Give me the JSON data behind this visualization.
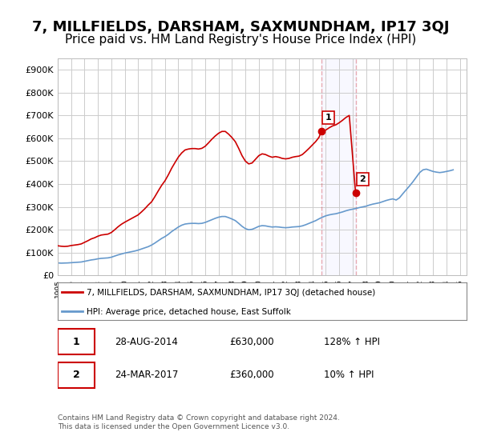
{
  "title": "7, MILLFIELDS, DARSHAM, SAXMUNDHAM, IP17 3QJ",
  "subtitle": "Price paid vs. HM Land Registry's House Price Index (HPI)",
  "title_fontsize": 13,
  "subtitle_fontsize": 11,
  "ylabel_ticks": [
    "£0",
    "£100K",
    "£200K",
    "£300K",
    "£400K",
    "£500K",
    "£600K",
    "£700K",
    "£800K",
    "£900K"
  ],
  "ytick_values": [
    0,
    100000,
    200000,
    300000,
    400000,
    500000,
    600000,
    700000,
    800000,
    900000
  ],
  "ylim": [
    0,
    950000
  ],
  "xlim_start": 1995.0,
  "xlim_end": 2025.5,
  "background_color": "#ffffff",
  "plot_bg_color": "#ffffff",
  "grid_color": "#cccccc",
  "red_line_color": "#cc0000",
  "blue_line_color": "#6699cc",
  "marker1_color": "#cc0000",
  "marker2_color": "#cc0000",
  "vline_color": "#cc0000",
  "vline_alpha": 0.3,
  "legend_label_red": "7, MILLFIELDS, DARSHAM, SAXMUNDHAM, IP17 3QJ (detached house)",
  "legend_label_blue": "HPI: Average price, detached house, East Suffolk",
  "transaction1_label": "1",
  "transaction1_date": "28-AUG-2014",
  "transaction1_price": "£630,000",
  "transaction1_hpi": "128% ↑ HPI",
  "transaction1_year": 2014.65,
  "transaction1_price_val": 630000,
  "transaction2_label": "2",
  "transaction2_date": "24-MAR-2017",
  "transaction2_price": "£360,000",
  "transaction2_hpi": "10% ↑ HPI",
  "transaction2_year": 2017.22,
  "transaction2_price_val": 360000,
  "footer_line1": "Contains HM Land Registry data © Crown copyright and database right 2024.",
  "footer_line2": "This data is licensed under the Open Government Licence v3.0.",
  "hpi_data": {
    "years": [
      1995.0,
      1995.25,
      1995.5,
      1995.75,
      1996.0,
      1996.25,
      1996.5,
      1996.75,
      1997.0,
      1997.25,
      1997.5,
      1997.75,
      1998.0,
      1998.25,
      1998.5,
      1998.75,
      1999.0,
      1999.25,
      1999.5,
      1999.75,
      2000.0,
      2000.25,
      2000.5,
      2000.75,
      2001.0,
      2001.25,
      2001.5,
      2001.75,
      2002.0,
      2002.25,
      2002.5,
      2002.75,
      2003.0,
      2003.25,
      2003.5,
      2003.75,
      2004.0,
      2004.25,
      2004.5,
      2004.75,
      2005.0,
      2005.25,
      2005.5,
      2005.75,
      2006.0,
      2006.25,
      2006.5,
      2006.75,
      2007.0,
      2007.25,
      2007.5,
      2007.75,
      2008.0,
      2008.25,
      2008.5,
      2008.75,
      2009.0,
      2009.25,
      2009.5,
      2009.75,
      2010.0,
      2010.25,
      2010.5,
      2010.75,
      2011.0,
      2011.25,
      2011.5,
      2011.75,
      2012.0,
      2012.25,
      2012.5,
      2012.75,
      2013.0,
      2013.25,
      2013.5,
      2013.75,
      2014.0,
      2014.25,
      2014.5,
      2014.75,
      2015.0,
      2015.25,
      2015.5,
      2015.75,
      2016.0,
      2016.25,
      2016.5,
      2016.75,
      2017.0,
      2017.25,
      2017.5,
      2017.75,
      2018.0,
      2018.25,
      2018.5,
      2018.75,
      2019.0,
      2019.25,
      2019.5,
      2019.75,
      2020.0,
      2020.25,
      2020.5,
      2020.75,
      2021.0,
      2021.25,
      2021.5,
      2021.75,
      2022.0,
      2022.25,
      2022.5,
      2022.75,
      2023.0,
      2023.25,
      2023.5,
      2023.75,
      2024.0,
      2024.25,
      2024.5
    ],
    "values": [
      55000,
      54000,
      54500,
      55000,
      56000,
      57000,
      58000,
      59000,
      62000,
      65000,
      68000,
      70000,
      73000,
      75000,
      76000,
      77000,
      80000,
      85000,
      90000,
      94000,
      98000,
      101000,
      104000,
      107000,
      111000,
      116000,
      121000,
      126000,
      133000,
      142000,
      152000,
      162000,
      170000,
      180000,
      192000,
      202000,
      212000,
      220000,
      225000,
      227000,
      228000,
      228000,
      227000,
      228000,
      232000,
      238000,
      244000,
      250000,
      255000,
      258000,
      258000,
      253000,
      247000,
      240000,
      228000,
      215000,
      205000,
      200000,
      202000,
      208000,
      215000,
      218000,
      217000,
      214000,
      212000,
      213000,
      212000,
      210000,
      209000,
      210000,
      212000,
      213000,
      214000,
      217000,
      222000,
      228000,
      234000,
      240000,
      248000,
      255000,
      261000,
      265000,
      268000,
      270000,
      274000,
      278000,
      283000,
      287000,
      290000,
      293000,
      297000,
      300000,
      303000,
      308000,
      312000,
      315000,
      318000,
      323000,
      328000,
      332000,
      335000,
      330000,
      340000,
      358000,
      375000,
      392000,
      410000,
      430000,
      450000,
      462000,
      465000,
      460000,
      455000,
      452000,
      450000,
      452000,
      455000,
      458000,
      462000
    ]
  },
  "red_data": {
    "years": [
      1995.0,
      1995.25,
      1995.5,
      1995.75,
      1996.0,
      1996.25,
      1996.5,
      1996.75,
      1997.0,
      1997.25,
      1997.5,
      1997.75,
      1998.0,
      1998.25,
      1998.5,
      1998.75,
      1999.0,
      1999.25,
      1999.5,
      1999.75,
      2000.0,
      2000.25,
      2000.5,
      2000.75,
      2001.0,
      2001.25,
      2001.5,
      2001.75,
      2002.0,
      2002.25,
      2002.5,
      2002.75,
      2003.0,
      2003.25,
      2003.5,
      2003.75,
      2004.0,
      2004.25,
      2004.5,
      2004.75,
      2005.0,
      2005.25,
      2005.5,
      2005.75,
      2006.0,
      2006.25,
      2006.5,
      2006.75,
      2007.0,
      2007.25,
      2007.5,
      2007.75,
      2008.0,
      2008.25,
      2008.5,
      2008.75,
      2009.0,
      2009.25,
      2009.5,
      2009.75,
      2010.0,
      2010.25,
      2010.5,
      2010.75,
      2011.0,
      2011.25,
      2011.5,
      2011.75,
      2012.0,
      2012.25,
      2012.5,
      2012.75,
      2013.0,
      2013.25,
      2013.5,
      2013.75,
      2014.0,
      2014.25,
      2014.5,
      2014.65,
      2015.0,
      2015.25,
      2015.5,
      2015.75,
      2016.0,
      2016.25,
      2016.5,
      2016.75,
      2017.22
    ],
    "values": [
      130000,
      128000,
      127000,
      128000,
      131000,
      133000,
      135000,
      138000,
      145000,
      152000,
      160000,
      165000,
      172000,
      177000,
      179000,
      181000,
      188000,
      200000,
      213000,
      224000,
      233000,
      241000,
      249000,
      257000,
      265000,
      278000,
      292000,
      308000,
      322000,
      345000,
      370000,
      394000,
      414000,
      440000,
      469000,
      494000,
      518000,
      536000,
      549000,
      553000,
      555000,
      555000,
      553000,
      556000,
      565000,
      580000,
      596000,
      610000,
      622000,
      630000,
      630000,
      618000,
      603000,
      585000,
      556000,
      524000,
      500000,
      488000,
      492000,
      508000,
      524000,
      532000,
      529000,
      522000,
      517000,
      520000,
      517000,
      512000,
      510000,
      512000,
      517000,
      520000,
      522000,
      529000,
      542000,
      556000,
      571000,
      586000,
      605000,
      630000,
      636000,
      646000,
      654000,
      659000,
      668000,
      679000,
      691000,
      700000,
      360000
    ]
  }
}
